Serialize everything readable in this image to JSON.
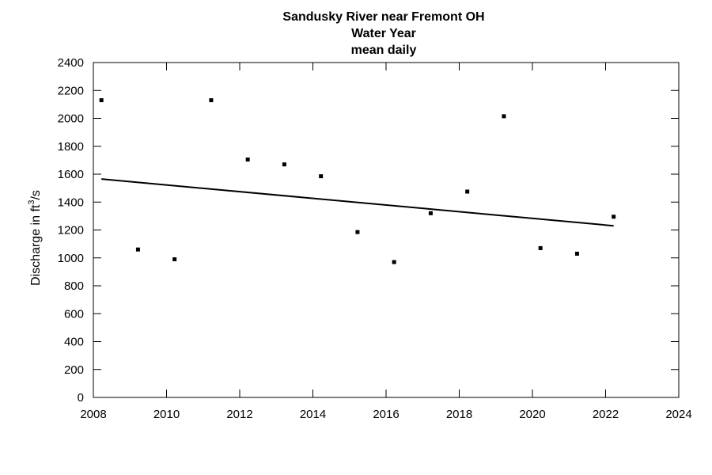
{
  "chart_data": {
    "type": "scatter",
    "title": [
      "Sandusky River near Fremont OH",
      "Water Year",
      "mean daily"
    ],
    "xlabel": "",
    "ylabel": {
      "prefix": "Discharge in ft",
      "superscript": "3",
      "suffix": "/s"
    },
    "xlim": [
      2008,
      2024
    ],
    "ylim": [
      0,
      2400
    ],
    "xticks": [
      2008,
      2010,
      2012,
      2014,
      2016,
      2018,
      2020,
      2022,
      2024
    ],
    "yticks": [
      0,
      200,
      400,
      600,
      800,
      1000,
      1200,
      1400,
      1600,
      1800,
      2000,
      2200,
      2400
    ],
    "grid": false,
    "series": [
      {
        "points": [
          {
            "x": 2008.22,
            "y": 2130
          },
          {
            "x": 2009.22,
            "y": 1060
          },
          {
            "x": 2010.22,
            "y": 990
          },
          {
            "x": 2011.22,
            "y": 2130
          },
          {
            "x": 2012.22,
            "y": 1705
          },
          {
            "x": 2013.22,
            "y": 1670
          },
          {
            "x": 2014.22,
            "y": 1585
          },
          {
            "x": 2015.22,
            "y": 1185
          },
          {
            "x": 2016.22,
            "y": 970
          },
          {
            "x": 2017.22,
            "y": 1320
          },
          {
            "x": 2018.22,
            "y": 1475
          },
          {
            "x": 2019.22,
            "y": 2015
          },
          {
            "x": 2020.22,
            "y": 1070
          },
          {
            "x": 2021.22,
            "y": 1030
          },
          {
            "x": 2022.22,
            "y": 1295
          }
        ]
      }
    ],
    "trendline": {
      "x": [
        2008.22,
        2022.22
      ],
      "y": [
        1565,
        1230
      ]
    }
  }
}
